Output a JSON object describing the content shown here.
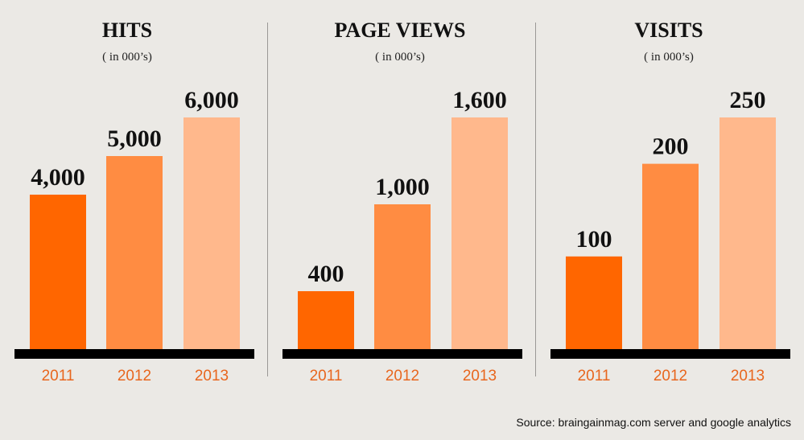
{
  "chart_data": [
    {
      "type": "bar",
      "title": "HITS",
      "subtitle": "( in 000’s)",
      "categories": [
        "2011",
        "2012",
        "2013"
      ],
      "values": [
        4000,
        5000,
        6000
      ],
      "value_labels": [
        "4,000",
        "5,000",
        "6,000"
      ],
      "colors": [
        "#ff6600",
        "#ff8c42",
        "#ffb88c"
      ]
    },
    {
      "type": "bar",
      "title": "PAGE VIEWS",
      "subtitle": "( in 000’s)",
      "categories": [
        "2011",
        "2012",
        "2013"
      ],
      "values": [
        400,
        1000,
        1600
      ],
      "value_labels": [
        "400",
        "1,000",
        "1,600"
      ],
      "colors": [
        "#ff6600",
        "#ff8c42",
        "#ffb88c"
      ]
    },
    {
      "type": "bar",
      "title": "VISITS",
      "subtitle": "( in 000’s)",
      "categories": [
        "2011",
        "2012",
        "2013"
      ],
      "values": [
        100,
        200,
        250
      ],
      "value_labels": [
        "100",
        "200",
        "250"
      ],
      "colors": [
        "#ff6600",
        "#ff8c42",
        "#ffb88c"
      ]
    }
  ],
  "source": "Source: braingainmag.com server and google analytics"
}
